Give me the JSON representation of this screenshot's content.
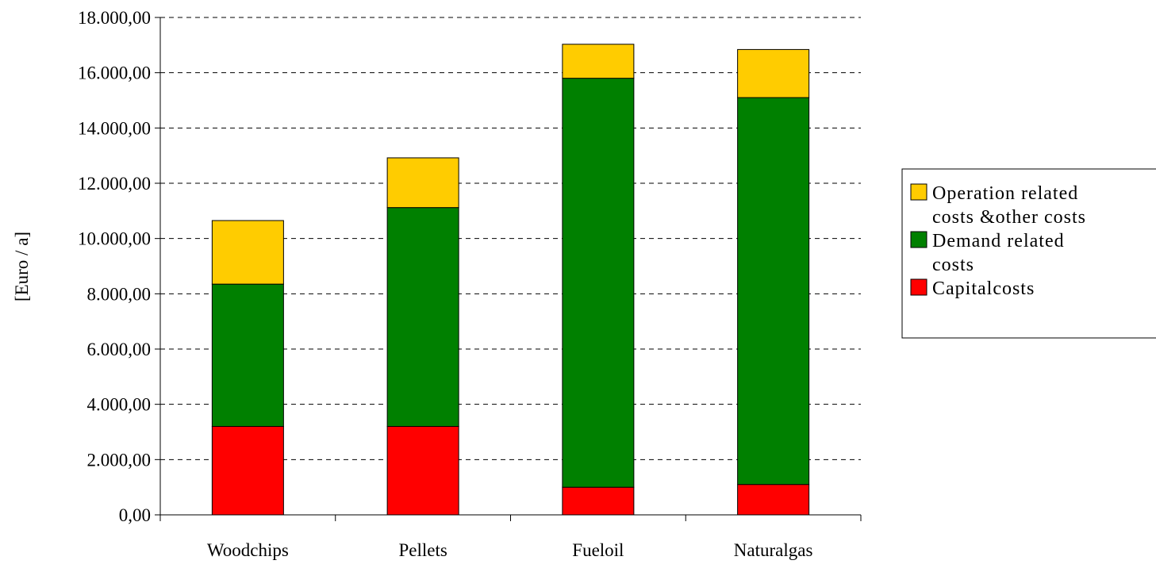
{
  "chart_data": {
    "type": "bar",
    "stacked": true,
    "categories": [
      "Woodchips",
      "Pellets",
      "Fueloil",
      "Naturalgas"
    ],
    "series": [
      {
        "name": "Capitalcosts",
        "color": "#ff0000",
        "values": [
          3200,
          3200,
          1000,
          1100
        ]
      },
      {
        "name": "Demand related costs",
        "color": "#008000",
        "values": [
          5150,
          7920,
          14800,
          14000
        ]
      },
      {
        "name": "Operation related costs &other costs",
        "color": "#ffcc00",
        "values": [
          2300,
          1800,
          1230,
          1740
        ]
      }
    ],
    "title": "",
    "xlabel": "",
    "ylabel": "[Euro / a]",
    "ylim": [
      0,
      18000
    ],
    "yticks": [
      0,
      2000,
      4000,
      6000,
      8000,
      10000,
      12000,
      14000,
      16000,
      18000
    ],
    "ytick_labels": [
      "0,00",
      "2.000,00",
      "4.000,00",
      "6.000,00",
      "8.000,00",
      "10.000,00",
      "12.000,00",
      "14.000,00",
      "16.000,00",
      "18.000,00"
    ],
    "grid": "horizontal-dashed",
    "legend": {
      "position": "right",
      "entries": [
        {
          "lines": [
            "Operation related",
            "costs &other costs"
          ],
          "color": "#ffcc00"
        },
        {
          "lines": [
            "Demand related",
            "costs"
          ],
          "color": "#008000"
        },
        {
          "lines": [
            "Capitalcosts"
          ],
          "color": "#ff0000"
        }
      ]
    }
  }
}
